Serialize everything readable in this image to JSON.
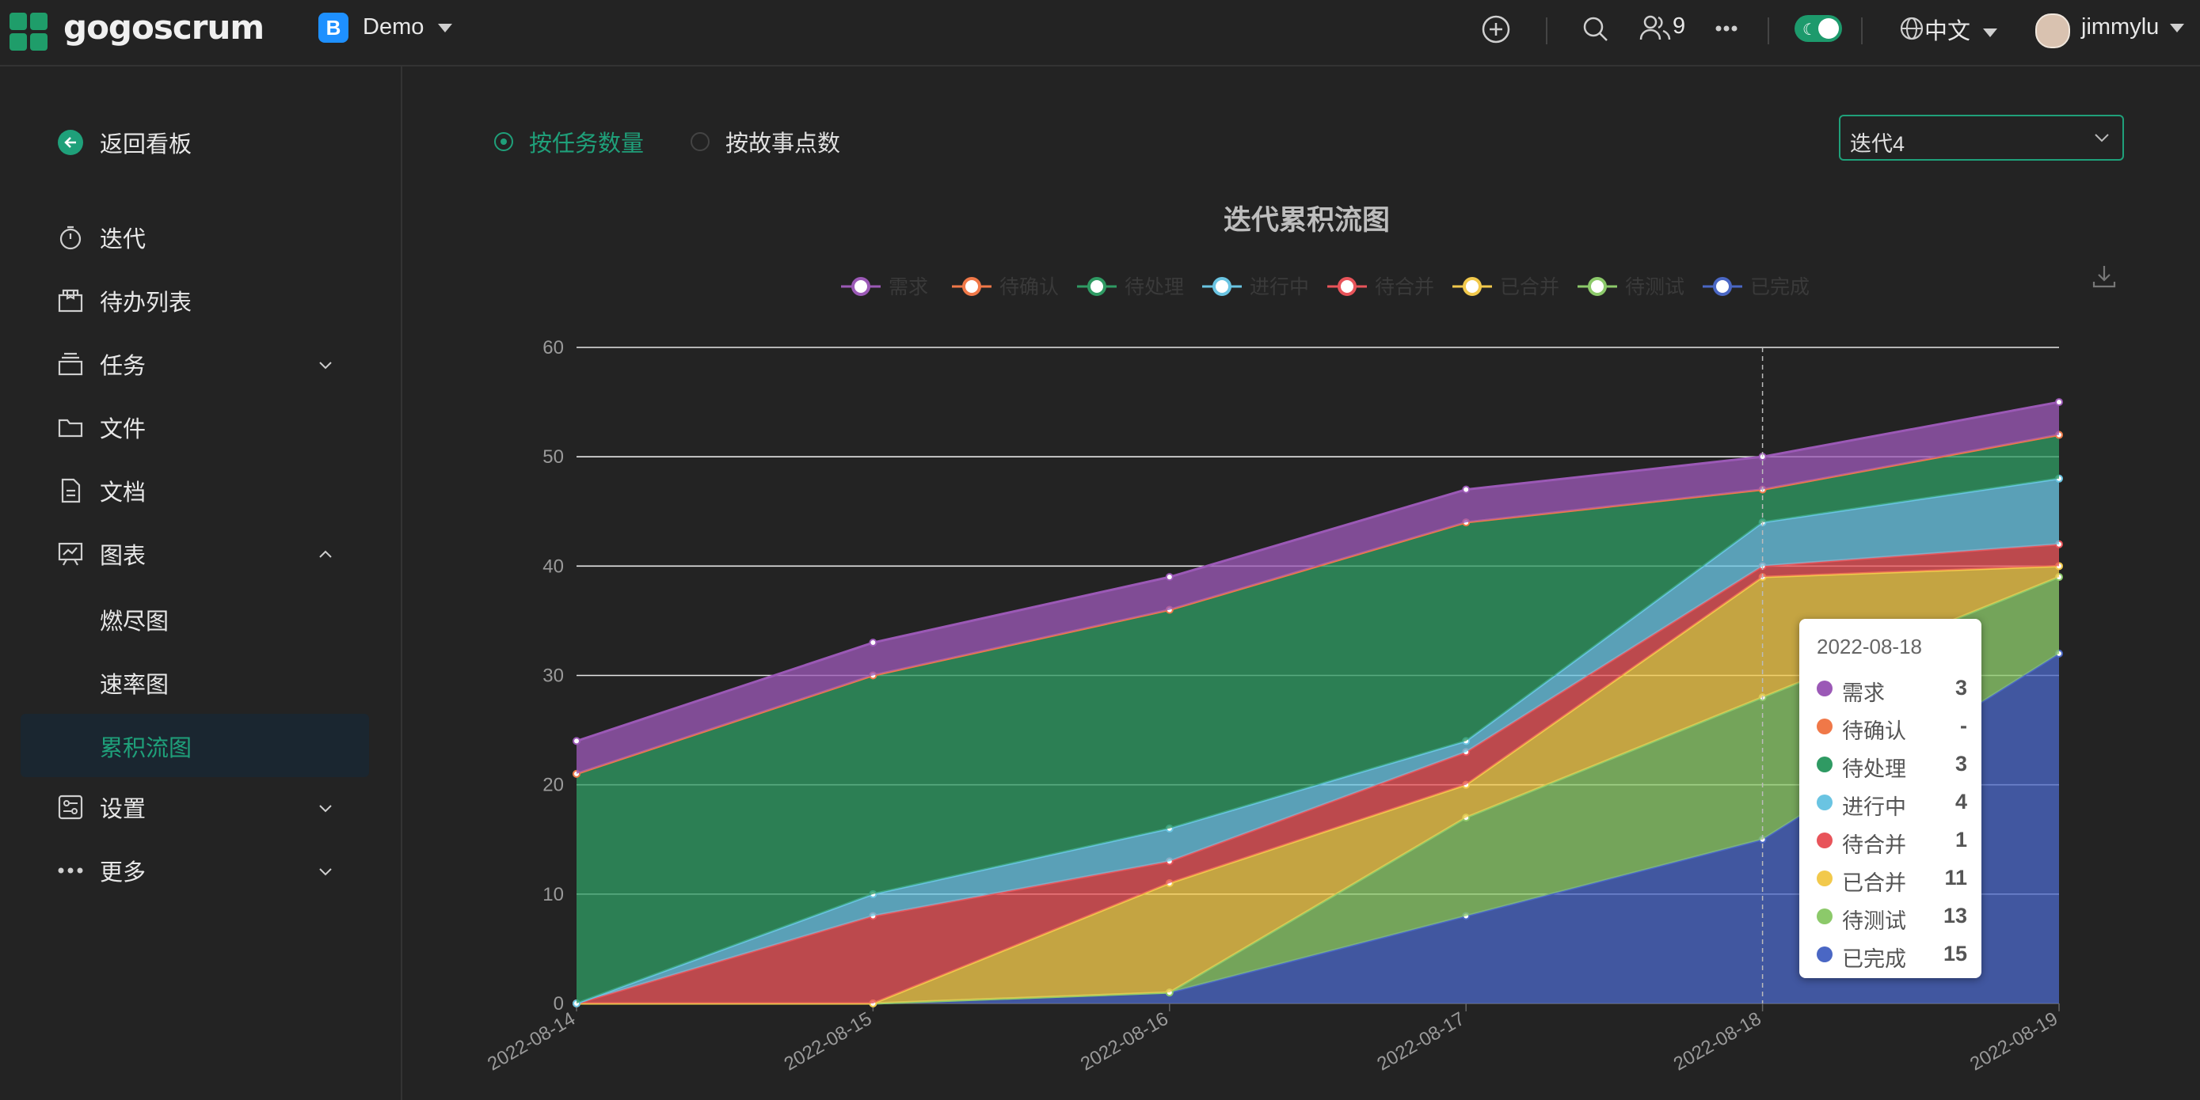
{
  "app": {
    "logo_text": "gogoscrum",
    "project_badge": "B",
    "project_name": "Demo",
    "members_count": "9",
    "language": "中文",
    "username": "jimmylu"
  },
  "sidebar": {
    "back": "返回看板",
    "items": [
      {
        "label": "迭代",
        "icon": "timer-icon"
      },
      {
        "label": "待办列表",
        "icon": "box-icon"
      },
      {
        "label": "任务",
        "icon": "layers-icon"
      },
      {
        "label": "文件",
        "icon": "folder-icon"
      },
      {
        "label": "文档",
        "icon": "document-icon"
      },
      {
        "label": "图表",
        "icon": "chart-board-icon"
      },
      {
        "label": "设置",
        "icon": "settings-icon"
      },
      {
        "label": "更多",
        "icon": "more-icon"
      }
    ],
    "sub_items": [
      "燃尽图",
      "速率图",
      "累积流图"
    ]
  },
  "controls": {
    "radio_tasks": "按任务数量",
    "radio_points": "按故事点数",
    "iteration_select": "迭代4"
  },
  "colors": {
    "accent": "#1fa07a"
  },
  "chart_data": {
    "type": "area",
    "title": "迭代累积流图",
    "stacked": true,
    "legend_placement": "top",
    "x": [
      "2022-08-14",
      "2022-08-15",
      "2022-08-16",
      "2022-08-17",
      "2022-08-18",
      "2022-08-19"
    ],
    "ylim": [
      0,
      60
    ],
    "yticks": [
      0,
      10,
      20,
      30,
      40,
      50,
      60
    ],
    "grid": true,
    "series": [
      {
        "name": "需求",
        "color": "#9b59b6",
        "values": [
          3,
          3,
          3,
          3,
          3,
          3
        ]
      },
      {
        "name": "待确认",
        "color": "#f07848",
        "values": [
          0,
          0,
          0,
          0,
          0,
          0
        ]
      },
      {
        "name": "待处理",
        "color": "#2f9a63",
        "values": [
          21,
          20,
          20,
          20,
          3,
          4
        ]
      },
      {
        "name": "进行中",
        "color": "#6ac4e2",
        "values": [
          0,
          2,
          3,
          1,
          4,
          6
        ]
      },
      {
        "name": "待合并",
        "color": "#e8545a",
        "values": [
          0,
          8,
          2,
          3,
          1,
          2
        ]
      },
      {
        "name": "已合并",
        "color": "#f2c94c",
        "values": [
          0,
          0,
          10,
          3,
          11,
          1
        ]
      },
      {
        "name": "待测试",
        "color": "#8cc96a",
        "values": [
          0,
          0,
          0,
          9,
          13,
          7
        ]
      },
      {
        "name": "已完成",
        "color": "#4a67c4",
        "values": [
          0,
          0,
          1,
          8,
          15,
          32
        ]
      }
    ],
    "tooltip": {
      "date": "2022-08-18",
      "rows": [
        {
          "name": "需求",
          "value": "3"
        },
        {
          "name": "待确认",
          "value": "-"
        },
        {
          "name": "待处理",
          "value": "3"
        },
        {
          "name": "进行中",
          "value": "4"
        },
        {
          "name": "待合并",
          "value": "1"
        },
        {
          "name": "已合并",
          "value": "11"
        },
        {
          "name": "待测试",
          "value": "13"
        },
        {
          "name": "已完成",
          "value": "15"
        }
      ]
    }
  }
}
